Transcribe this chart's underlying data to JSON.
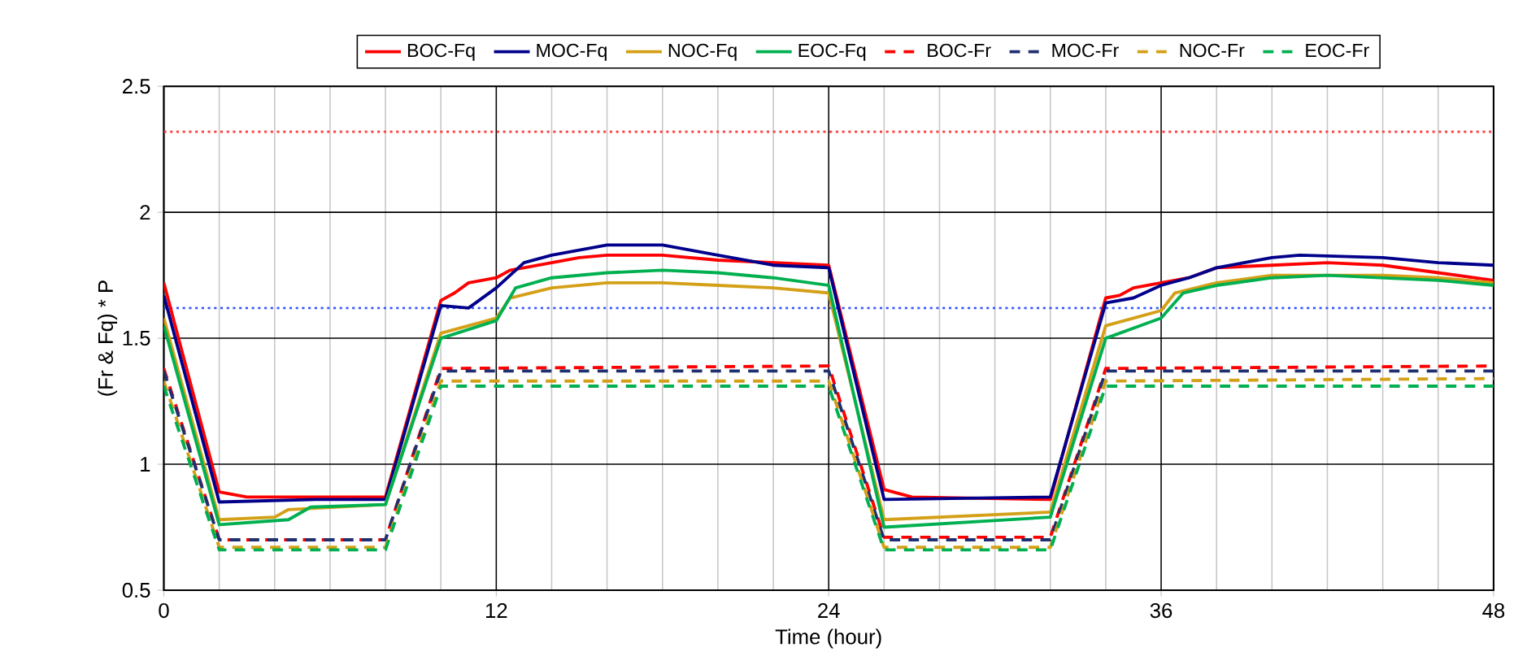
{
  "chart_data": {
    "type": "line",
    "xlabel": "Time (hour)",
    "ylabel": "(Fr & Fq) * P",
    "xlim": [
      0,
      48
    ],
    "ylim": [
      0.5,
      2.5
    ],
    "xticks": [
      0,
      {
        "value": 2,
        "label": null
      },
      {
        "value": 4,
        "label": null
      },
      {
        "value": 6,
        "label": null
      },
      {
        "value": 8,
        "label": null
      },
      {
        "value": 10,
        "label": null
      },
      12,
      {
        "value": 14,
        "label": null
      },
      {
        "value": 16,
        "label": null
      },
      {
        "value": 18,
        "label": null
      },
      {
        "value": 20,
        "label": null
      },
      {
        "value": 22,
        "label": null
      },
      24,
      {
        "value": 26,
        "label": null
      },
      {
        "value": 28,
        "label": null
      },
      {
        "value": 30,
        "label": null
      },
      {
        "value": 32,
        "label": null
      },
      {
        "value": 34,
        "label": null
      },
      36,
      {
        "value": 38,
        "label": null
      },
      {
        "value": 40,
        "label": null
      },
      {
        "value": 42,
        "label": null
      },
      {
        "value": 44,
        "label": null
      },
      {
        "value": 46,
        "label": null
      },
      48
    ],
    "yticks": [
      0.5,
      1,
      1.5,
      2,
      2.5
    ],
    "grid": true,
    "legend": "top",
    "ref_lines": [
      {
        "axis": "y",
        "value": 2.32,
        "color": "#ff4040",
        "line_style": "dotted"
      },
      {
        "axis": "y",
        "value": 1.62,
        "color": "#3355ff",
        "line_style": "dotted"
      }
    ],
    "series": [
      {
        "name": "BOC-Fq",
        "color": "#ff0000",
        "line_style": "solid",
        "x": [
          0,
          2,
          3,
          8,
          10,
          10.5,
          11,
          12,
          12.5,
          13,
          14,
          15,
          16,
          18,
          20,
          22,
          24,
          26,
          27,
          32,
          34,
          34.5,
          35,
          36,
          37,
          38,
          40,
          42,
          44,
          46,
          48
        ],
        "values": [
          1.72,
          0.89,
          0.87,
          0.87,
          1.65,
          1.68,
          1.72,
          1.74,
          1.77,
          1.78,
          1.8,
          1.82,
          1.83,
          1.83,
          1.81,
          1.8,
          1.79,
          0.9,
          0.87,
          0.86,
          1.66,
          1.67,
          1.7,
          1.72,
          1.74,
          1.78,
          1.79,
          1.8,
          1.79,
          1.76,
          1.73
        ]
      },
      {
        "name": "MOC-Fq",
        "color": "#00008b",
        "line_style": "solid",
        "x": [
          0,
          2,
          5.5,
          8,
          10,
          11,
          12,
          13,
          14,
          16,
          18,
          20,
          22,
          24,
          26,
          32,
          34,
          35,
          36,
          37,
          38,
          40,
          41,
          44,
          46,
          48
        ],
        "values": [
          1.67,
          0.85,
          0.86,
          0.86,
          1.63,
          1.62,
          1.7,
          1.8,
          1.83,
          1.87,
          1.87,
          1.83,
          1.79,
          1.78,
          0.86,
          0.87,
          1.64,
          1.66,
          1.71,
          1.74,
          1.78,
          1.82,
          1.83,
          1.82,
          1.8,
          1.79
        ]
      },
      {
        "name": "NOC-Fq",
        "color": "#d4a017",
        "line_style": "solid",
        "x": [
          0,
          2,
          4,
          4.5,
          8,
          10,
          12,
          12.5,
          14,
          16,
          18,
          20,
          22,
          24,
          26,
          30,
          32,
          34,
          35,
          36,
          36.5,
          38,
          40,
          42,
          44,
          46,
          48
        ],
        "values": [
          1.58,
          0.78,
          0.79,
          0.82,
          0.84,
          1.52,
          1.58,
          1.66,
          1.7,
          1.72,
          1.72,
          1.71,
          1.7,
          1.68,
          0.78,
          0.8,
          0.81,
          1.55,
          1.58,
          1.61,
          1.68,
          1.72,
          1.75,
          1.75,
          1.75,
          1.74,
          1.72
        ]
      },
      {
        "name": "EOC-Fq",
        "color": "#00b050",
        "line_style": "solid",
        "x": [
          0,
          2,
          4.5,
          5.3,
          8,
          10,
          12,
          12.7,
          14,
          16,
          18,
          20,
          22,
          24,
          26,
          32,
          34,
          36,
          36.8,
          38,
          40,
          42,
          44,
          46,
          48
        ],
        "values": [
          1.55,
          0.76,
          0.78,
          0.83,
          0.84,
          1.5,
          1.57,
          1.7,
          1.74,
          1.76,
          1.77,
          1.76,
          1.74,
          1.71,
          0.75,
          0.79,
          1.5,
          1.58,
          1.68,
          1.71,
          1.74,
          1.75,
          1.74,
          1.73,
          1.71
        ]
      },
      {
        "name": "BOC-Fr",
        "color": "#ff0000",
        "line_style": "dashed",
        "x": [
          0,
          2,
          8,
          10,
          24,
          26,
          32,
          34,
          48
        ],
        "values": [
          1.38,
          0.7,
          0.7,
          1.38,
          1.39,
          0.71,
          0.71,
          1.38,
          1.39
        ]
      },
      {
        "name": "MOC-Fr",
        "color": "#1f2f6f",
        "line_style": "dashed",
        "x": [
          0,
          2,
          8,
          10,
          24,
          26,
          32,
          34,
          48
        ],
        "values": [
          1.37,
          0.7,
          0.7,
          1.37,
          1.37,
          0.7,
          0.7,
          1.37,
          1.37
        ]
      },
      {
        "name": "NOC-Fr",
        "color": "#d4a017",
        "line_style": "dashed",
        "x": [
          0,
          2,
          8,
          10,
          24,
          26,
          32,
          34,
          48
        ],
        "values": [
          1.33,
          0.67,
          0.67,
          1.33,
          1.33,
          0.67,
          0.67,
          1.33,
          1.34
        ]
      },
      {
        "name": "EOC-Fr",
        "color": "#00b050",
        "line_style": "dashed",
        "x": [
          0,
          2,
          8,
          10,
          24,
          26,
          32,
          34,
          48
        ],
        "values": [
          1.31,
          0.66,
          0.66,
          1.31,
          1.31,
          0.66,
          0.66,
          1.31,
          1.31
        ]
      }
    ]
  }
}
